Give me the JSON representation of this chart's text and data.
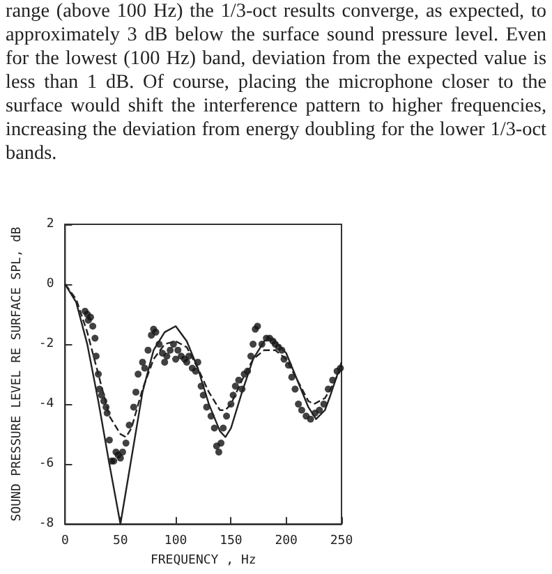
{
  "chart_data": {
    "type": "line",
    "annotations": [
      "range (above 100 Hz) the 1/3-oct results converge, as expected, to approximately 3 dB below the surface sound pressure level. Even for the lowest (100 Hz) band, deviation from the expected value is less than 1 dB. Of course, placing the microphone closer to the surface would shift the interference pattern to higher frequencies, increasing the deviation from energy doubling for the lower 1/3-oct bands."
    ],
    "xlabel": "FREQUENCY , Hz",
    "ylabel": "SOUND PRESSURE LEVEL RE SURFACE SPL, dB",
    "xlim": [
      0,
      250
    ],
    "xticks": [
      0,
      50,
      100,
      150,
      200,
      250
    ],
    "ylim": [
      -8,
      2
    ],
    "yticks": [
      -8,
      -6,
      -4,
      -2,
      0,
      2
    ],
    "grid": false,
    "series": [
      {
        "line_style": "solid",
        "color": "#222222",
        "x": [
          0,
          10,
          20,
          30,
          40,
          50,
          60,
          70,
          80,
          90,
          100,
          110,
          120,
          130,
          140,
          145,
          150,
          160,
          170,
          180,
          186,
          190,
          200,
          210,
          220,
          227,
          235,
          240,
          250
        ],
        "values": [
          0,
          -0.6,
          -2.0,
          -3.9,
          -6.0,
          -8,
          -5.8,
          -3.6,
          -2.2,
          -1.6,
          -1.4,
          -1.9,
          -2.8,
          -4.0,
          -4.9,
          -5.1,
          -4.8,
          -3.6,
          -2.5,
          -1.9,
          -1.8,
          -1.9,
          -2.3,
          -3.2,
          -4.1,
          -4.5,
          -4.2,
          -3.7,
          -2.6
        ]
      },
      {
        "line_style": "dashed",
        "color": "#222222",
        "x": [
          0,
          10,
          20,
          30,
          40,
          50,
          55,
          60,
          70,
          80,
          90,
          100,
          110,
          120,
          130,
          140,
          145,
          150,
          160,
          170,
          180,
          190,
          200,
          210,
          220,
          225,
          235,
          240,
          250
        ],
        "values": [
          0,
          -0.5,
          -1.6,
          -3.0,
          -4.4,
          -5.0,
          -5.1,
          -4.8,
          -3.5,
          -2.5,
          -2.0,
          -1.9,
          -2.1,
          -2.8,
          -3.6,
          -4.2,
          -4.2,
          -4.0,
          -3.2,
          -2.5,
          -2.2,
          -2.2,
          -2.5,
          -3.2,
          -3.9,
          -4.0,
          -3.8,
          -3.5,
          -2.8
        ]
      },
      {
        "type": "scatter",
        "marker": "circle",
        "color": "#111111",
        "x": [
          18,
          20,
          21,
          23,
          25,
          27,
          28,
          30,
          31,
          33,
          35,
          37,
          38,
          40,
          42,
          44,
          46,
          48,
          50,
          52,
          55,
          58,
          62,
          64,
          66,
          70,
          72,
          75,
          78,
          80,
          82,
          85,
          88,
          90,
          92,
          95,
          98,
          100,
          102,
          105,
          108,
          110,
          112,
          115,
          118,
          120,
          123,
          125,
          128,
          132,
          135,
          137,
          139,
          141,
          143,
          146,
          150,
          152,
          154,
          157,
          160,
          162,
          165,
          168,
          170,
          172,
          174,
          178,
          182,
          185,
          188,
          190,
          193,
          196,
          198,
          202,
          205,
          208,
          211,
          214,
          218,
          222,
          226,
          230,
          234,
          238,
          242,
          246,
          249
        ],
        "values": [
          -0.9,
          -1.0,
          -1.2,
          -1.1,
          -1.4,
          -1.8,
          -2.4,
          -3.0,
          -3.5,
          -3.7,
          -3.9,
          -4.1,
          -4.3,
          -5.2,
          -5.9,
          -5.9,
          -5.6,
          -5.7,
          -5.8,
          -5.6,
          -5.3,
          -4.7,
          -4.1,
          -3.6,
          -3.0,
          -2.6,
          -2.8,
          -2.2,
          -1.7,
          -1.5,
          -1.6,
          -2.0,
          -2.3,
          -2.6,
          -2.4,
          -2.2,
          -2.0,
          -2.5,
          -2.2,
          -2.4,
          -2.5,
          -2.6,
          -2.4,
          -2.8,
          -2.9,
          -2.6,
          -3.4,
          -3.7,
          -4.1,
          -4.4,
          -4.8,
          -5.4,
          -5.6,
          -5.3,
          -4.8,
          -4.4,
          -4.0,
          -3.7,
          -3.4,
          -3.2,
          -3.5,
          -3.0,
          -2.9,
          -2.4,
          -2.0,
          -1.5,
          -1.4,
          -2.0,
          -1.8,
          -1.8,
          -1.9,
          -2.0,
          -2.1,
          -2.2,
          -2.5,
          -2.7,
          -3.1,
          -3.5,
          -4.0,
          -4.2,
          -4.4,
          -4.5,
          -4.3,
          -4.2,
          -4.0,
          -3.5,
          -3.2,
          -2.9,
          -2.8
        ]
      }
    ]
  }
}
